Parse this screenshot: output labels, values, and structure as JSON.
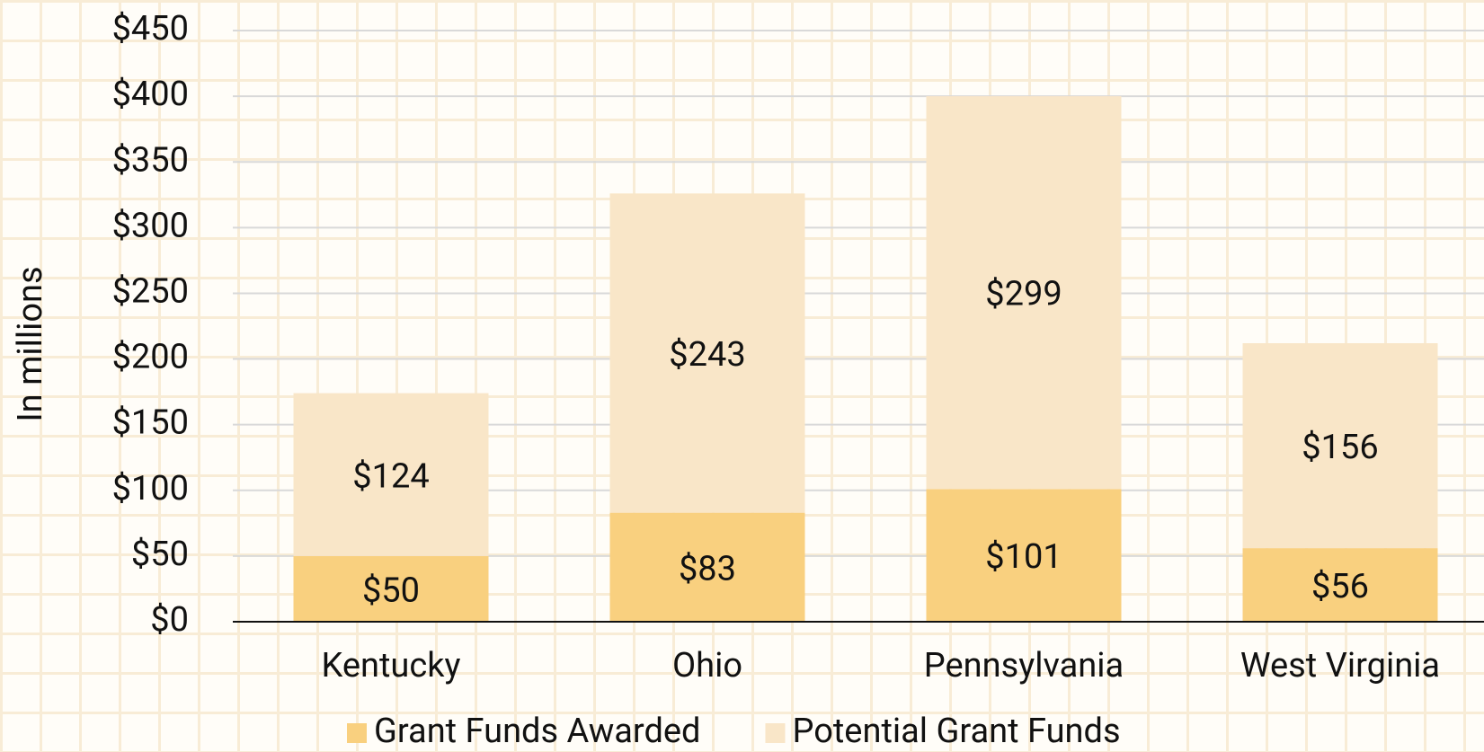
{
  "chart_data": {
    "type": "stacked_bar",
    "y_label": "In millions",
    "categories": [
      "Kentucky",
      "Ohio",
      "Pennsylvania",
      "West Virginia"
    ],
    "series": [
      {
        "name": "Grant Funds Awarded",
        "color": "#f9d07f",
        "values": [
          50,
          83,
          101,
          56
        ],
        "value_labels": [
          "$50",
          "$83",
          "$101",
          "$56"
        ]
      },
      {
        "name": "Potential Grant Funds",
        "color": "#f9e6c8",
        "values": [
          124,
          243,
          299,
          156
        ],
        "value_labels": [
          "$124",
          "$243",
          "$299",
          "$156"
        ]
      }
    ],
    "ylim": [
      0,
      450
    ],
    "yticks": [
      {
        "value": 0,
        "label": "$0"
      },
      {
        "value": 50,
        "label": "$50"
      },
      {
        "value": 100,
        "label": "$100"
      },
      {
        "value": 150,
        "label": "$150"
      },
      {
        "value": 200,
        "label": "$200"
      },
      {
        "value": 250,
        "label": "$250"
      },
      {
        "value": 300,
        "label": "$300"
      },
      {
        "value": 350,
        "label": "$350"
      },
      {
        "value": 400,
        "label": "$400"
      },
      {
        "value": 450,
        "label": "$450"
      }
    ],
    "grid": true,
    "legend": "bottom"
  }
}
